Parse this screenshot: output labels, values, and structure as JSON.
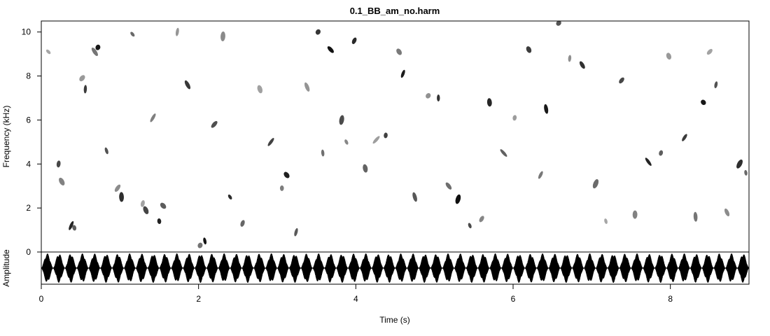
{
  "chart_data": {
    "type": "spectrogram",
    "title": "0.1_BB_am_no.harm",
    "xlabel": "Time (s)",
    "ylabel_top": "Frequency (kHz)",
    "ylabel_bottom": "Amplitude",
    "xlim": [
      0,
      9
    ],
    "ylim_freq": [
      0,
      10.5
    ],
    "x_ticks": [
      "0",
      "2",
      "4",
      "6",
      "8"
    ],
    "y_ticks_freq": [
      "0",
      "2",
      "4",
      "6",
      "8",
      "10"
    ],
    "grid": false,
    "colors": {
      "foreground": "#000000",
      "background": "#ffffff"
    },
    "waveform": {
      "pulses": 60,
      "modulation": "amplitude"
    },
    "blobs": [
      [
        0.09,
        9.1
      ],
      [
        0.22,
        4.0
      ],
      [
        0.26,
        3.2
      ],
      [
        0.38,
        1.2
      ],
      [
        0.42,
        1.1
      ],
      [
        0.52,
        7.9
      ],
      [
        0.56,
        7.4
      ],
      [
        0.68,
        9.1
      ],
      [
        0.72,
        9.3
      ],
      [
        0.83,
        4.6
      ],
      [
        0.97,
        2.9
      ],
      [
        1.02,
        2.5
      ],
      [
        1.16,
        9.9
      ],
      [
        1.29,
        2.2
      ],
      [
        1.33,
        1.9
      ],
      [
        1.42,
        6.1
      ],
      [
        1.5,
        1.4
      ],
      [
        1.55,
        2.1
      ],
      [
        1.73,
        10.0
      ],
      [
        1.86,
        7.6
      ],
      [
        2.02,
        0.3
      ],
      [
        2.08,
        0.5
      ],
      [
        2.2,
        5.8
      ],
      [
        2.31,
        9.8
      ],
      [
        2.4,
        2.5
      ],
      [
        2.56,
        1.3
      ],
      [
        2.78,
        7.4
      ],
      [
        2.92,
        5.0
      ],
      [
        3.06,
        2.9
      ],
      [
        3.12,
        3.5
      ],
      [
        3.24,
        0.9
      ],
      [
        3.38,
        7.5
      ],
      [
        3.52,
        10.0
      ],
      [
        3.58,
        4.5
      ],
      [
        3.68,
        9.2
      ],
      [
        3.82,
        6.0
      ],
      [
        3.88,
        5.0
      ],
      [
        3.98,
        9.6
      ],
      [
        4.12,
        3.8
      ],
      [
        4.26,
        5.1
      ],
      [
        4.38,
        5.3
      ],
      [
        4.55,
        9.1
      ],
      [
        4.6,
        8.1
      ],
      [
        4.75,
        2.5
      ],
      [
        4.92,
        7.1
      ],
      [
        5.05,
        7.0
      ],
      [
        5.18,
        3.0
      ],
      [
        5.3,
        2.4
      ],
      [
        5.45,
        1.2
      ],
      [
        5.6,
        1.5
      ],
      [
        5.7,
        6.8
      ],
      [
        5.88,
        4.5
      ],
      [
        6.02,
        6.1
      ],
      [
        6.2,
        9.2
      ],
      [
        6.35,
        3.5
      ],
      [
        6.42,
        6.5
      ],
      [
        6.58,
        10.4
      ],
      [
        6.72,
        8.8
      ],
      [
        6.88,
        8.5
      ],
      [
        7.05,
        3.1
      ],
      [
        7.18,
        1.4
      ],
      [
        7.38,
        7.8
      ],
      [
        7.55,
        1.7
      ],
      [
        7.72,
        4.1
      ],
      [
        7.88,
        4.5
      ],
      [
        7.98,
        8.9
      ],
      [
        8.18,
        5.2
      ],
      [
        8.32,
        1.6
      ],
      [
        8.42,
        6.8
      ],
      [
        8.58,
        7.6
      ],
      [
        8.72,
        1.8
      ],
      [
        8.88,
        4.0
      ],
      [
        8.96,
        3.6
      ],
      [
        8.5,
        9.1
      ]
    ]
  }
}
